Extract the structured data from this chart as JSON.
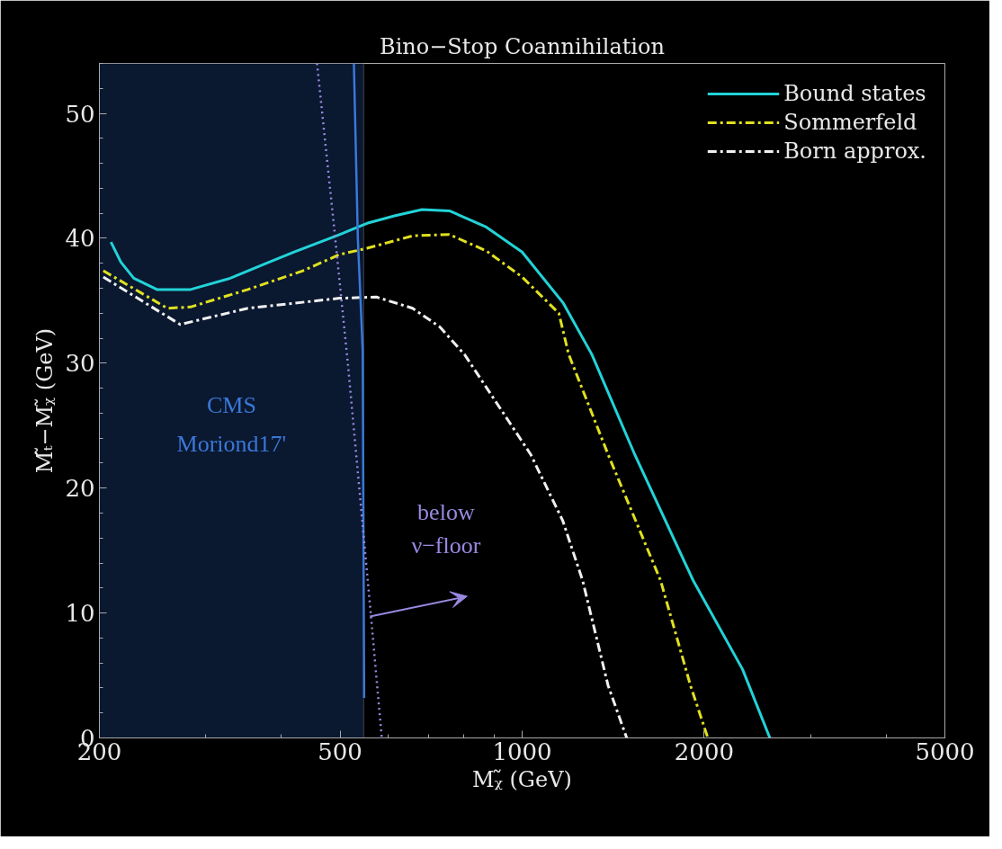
{
  "chart_data": {
    "type": "line",
    "title": "Bino−Stop Coannihilation",
    "xlabel": "Mᵪ̃ (GeV)",
    "ylabel": "Mₜ̃−Mᵪ̃ (GeV)",
    "log": "x",
    "xlim": [
      200,
      5000
    ],
    "xticks": [
      200,
      500,
      1000,
      2000,
      5000
    ],
    "ylim": [
      0,
      54
    ],
    "yticks": [
      0,
      10,
      20,
      30,
      40,
      50
    ],
    "grid": false,
    "legend": "top right",
    "series": [
      {
        "name": "Bound states",
        "color": "#22d3d8",
        "line_style": "solid",
        "x": [
          209,
          217,
          228,
          249,
          283,
          329,
          378,
          420,
          499,
          554,
          615,
          683,
          758,
          872,
          1000,
          1170,
          1304,
          1535,
          1918,
          2314,
          2568
        ],
        "values": [
          39.7,
          38.1,
          36.8,
          35.9,
          35.9,
          36.8,
          38.0,
          38.9,
          40.3,
          41.2,
          41.8,
          42.3,
          42.2,
          40.9,
          38.9,
          34.8,
          30.7,
          22.7,
          12.6,
          5.5,
          0
        ]
      },
      {
        "name": "Sommerfeld",
        "color": "#e0e020",
        "line_style": "dashdot",
        "x": [
          203,
          259,
          283,
          352,
          434,
          499,
          554,
          659,
          758,
          872,
          1000,
          1150,
          1194,
          1387,
          1694,
          1898,
          2028
        ],
        "values": [
          37.4,
          34.4,
          34.5,
          35.9,
          37.4,
          38.7,
          39.2,
          40.2,
          40.3,
          39.0,
          36.9,
          34.0,
          30.7,
          22.7,
          12.6,
          4.2,
          0
        ]
      },
      {
        "name": "Born approx.",
        "color": "#f0f0f0",
        "line_style": "dashdot",
        "x": [
          203,
          272,
          352,
          499,
          574,
          659,
          731,
          803,
          1033,
          1167,
          1259,
          1387,
          1489
        ],
        "values": [
          36.9,
          33.1,
          34.4,
          35.2,
          35.3,
          34.4,
          32.9,
          30.7,
          22.7,
          17.4,
          12.6,
          4.2,
          0
        ]
      },
      {
        "color": "#3a78d8",
        "line_style": "solid",
        "x": [
          527,
          535,
          545,
          548
        ],
        "values": [
          54,
          40,
          31,
          3.2
        ]
      },
      {
        "color": "#9a88e0",
        "line_style": "dotted",
        "x": [
          458,
          488,
          515,
          562,
          586
        ],
        "values": [
          54,
          41.2,
          30.0,
          9.95,
          0
        ]
      }
    ],
    "bands": [
      {
        "axis": "x",
        "from": 200,
        "to": 547,
        "color": "#0a1830",
        "label": "CMS\nMoriond17'"
      }
    ],
    "annotations": [
      "below\nν−floor"
    ]
  }
}
